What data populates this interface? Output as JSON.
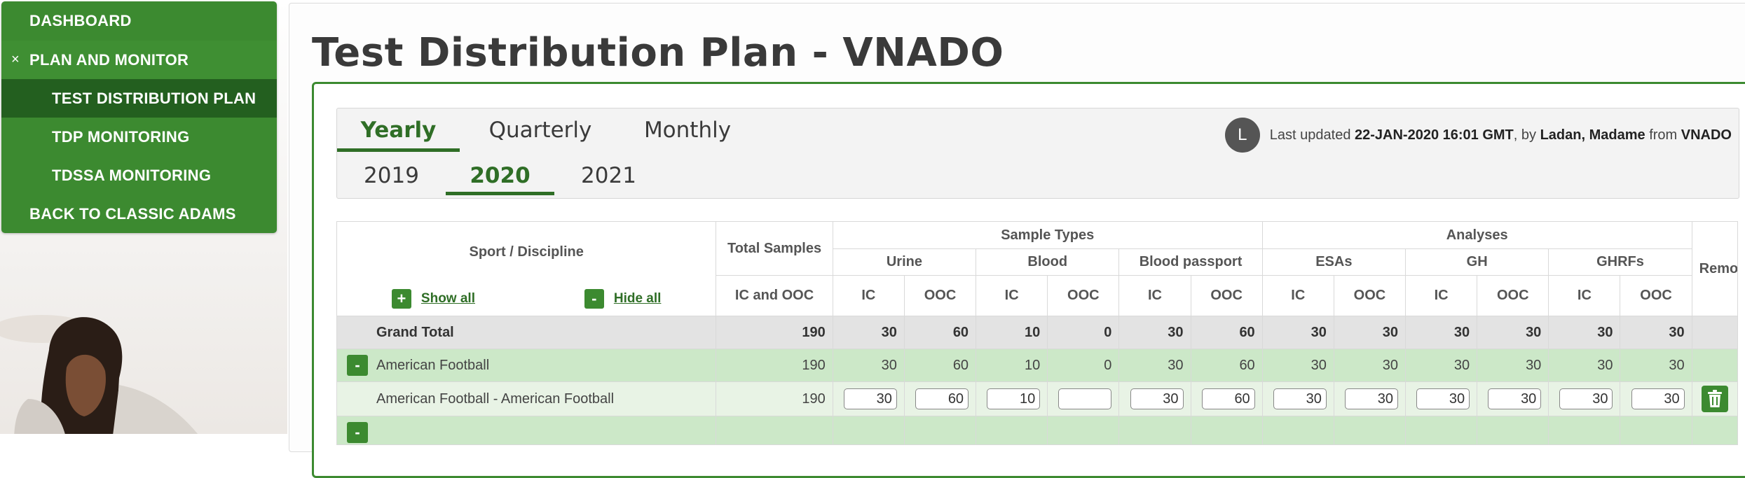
{
  "nav": {
    "items": [
      {
        "label": "DASHBOARD"
      },
      {
        "label": "PLAN AND MONITOR",
        "expanded_symbol": "×"
      },
      {
        "label": "TEST DISTRIBUTION PLAN"
      },
      {
        "label": "TDP MONITORING"
      },
      {
        "label": "TDSSA MONITORING"
      },
      {
        "label": "BACK TO CLASSIC ADAMS"
      }
    ]
  },
  "page": {
    "title": "Test Distribution Plan - VNADO"
  },
  "period": {
    "tabs": [
      {
        "label": "Yearly",
        "active": true
      },
      {
        "label": "Quarterly",
        "active": false
      },
      {
        "label": "Monthly",
        "active": false
      }
    ],
    "years": [
      {
        "label": "2019",
        "active": false
      },
      {
        "label": "2020",
        "active": true
      },
      {
        "label": "2021",
        "active": false
      }
    ]
  },
  "last_updated": {
    "avatar_initial": "L",
    "prefix": "Last updated",
    "date": "22-JAN-2020 16:01 GMT",
    "by_text": ", by",
    "user": "Ladan, Madame",
    "from_text": "from",
    "org": "VNADO"
  },
  "table": {
    "headers": {
      "sport_discipline": "Sport / Discipline",
      "total_samples": "Total Samples",
      "ic_and_ooc": "IC and OOC",
      "sample_types": "Sample Types",
      "analyses": "Analyses",
      "remove": "Remove",
      "urine": "Urine",
      "blood": "Blood",
      "blood_passport": "Blood passport",
      "esas": "ESAs",
      "gh": "GH",
      "ghrfs": "GHRFs",
      "ic": "IC",
      "ooc": "OOC"
    },
    "controls": {
      "show_all": "Show all",
      "hide_all": "Hide all",
      "plus_symbol": "+",
      "minus_symbol": "-"
    },
    "grand_total": {
      "label": "Grand Total",
      "values": [
        "190",
        "30",
        "60",
        "10",
        "0",
        "30",
        "60",
        "30",
        "30",
        "30",
        "30",
        "30",
        "30"
      ]
    },
    "sport_row": {
      "label": "American Football",
      "values": [
        "190",
        "30",
        "60",
        "10",
        "0",
        "30",
        "60",
        "30",
        "30",
        "30",
        "30",
        "30",
        "30"
      ]
    },
    "discipline_row": {
      "label": "American Football - American Football",
      "total": "190",
      "inputs": [
        "30",
        "60",
        "10",
        "",
        "30",
        "60",
        "30",
        "30",
        "30",
        "30",
        "30",
        "30"
      ]
    }
  }
}
